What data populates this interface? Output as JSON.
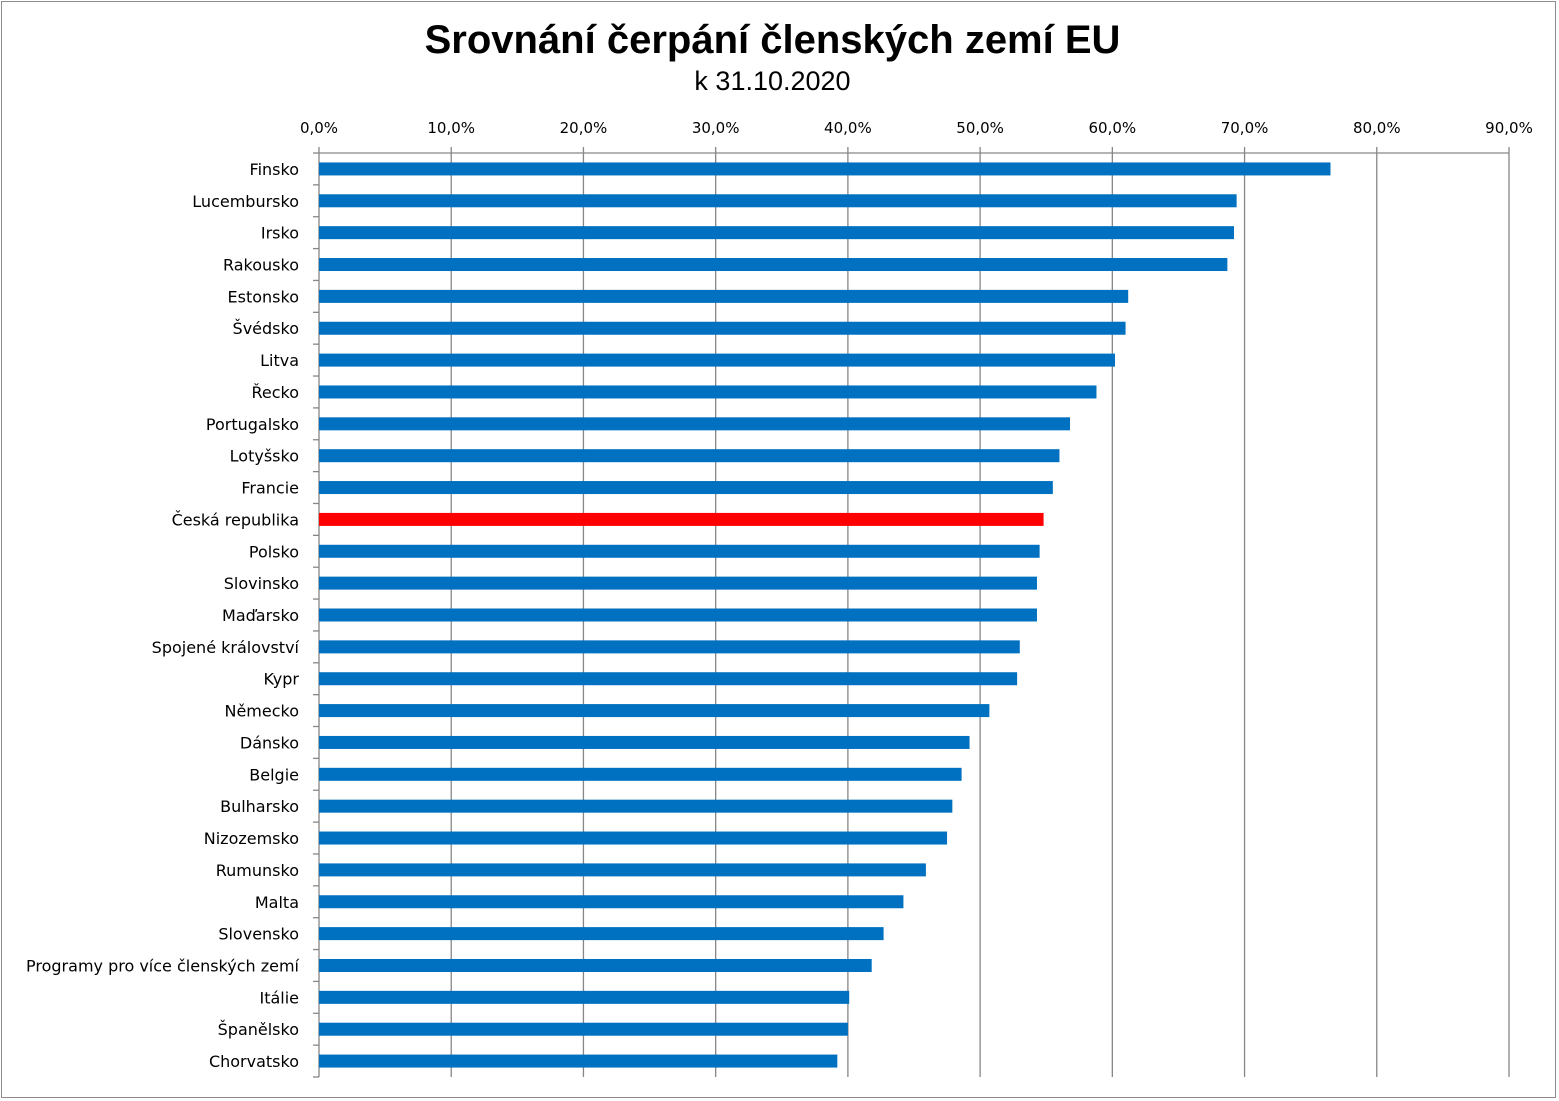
{
  "chart_data": {
    "type": "bar",
    "orientation": "horizontal",
    "title": "Srovnání čerpání členských zemí EU",
    "subtitle": "k 31.10.2020",
    "xlim": [
      0,
      90
    ],
    "x_ticks": [
      0,
      10,
      20,
      30,
      40,
      50,
      60,
      70,
      80,
      90
    ],
    "x_tick_labels": [
      "0,0%",
      "10,0%",
      "20,0%",
      "30,0%",
      "40,0%",
      "50,0%",
      "60,0%",
      "70,0%",
      "80,0%",
      "90,0%"
    ],
    "x_axis_position": "top",
    "grid": true,
    "categories": [
      "Finsko",
      "Lucembursko",
      "Irsko",
      "Rakousko",
      "Estonsko",
      "Švédsko",
      "Litva",
      "Řecko",
      "Portugalsko",
      "Lotyšsko",
      "Francie",
      "Česká republika",
      "Polsko",
      "Slovinsko",
      "Maďarsko",
      "Spojené království",
      "Kypr",
      "Německo",
      "Dánsko",
      "Belgie",
      "Bulharsko",
      "Nizozemsko",
      "Rumunsko",
      "Malta",
      "Slovensko",
      "Programy pro více členských zemí",
      "Itálie",
      "Španělsko",
      "Chorvatsko"
    ],
    "values": [
      76.5,
      69.4,
      69.2,
      68.7,
      61.2,
      61.0,
      60.2,
      58.8,
      56.8,
      56.0,
      55.5,
      54.8,
      54.5,
      54.3,
      54.3,
      53.0,
      52.8,
      50.7,
      49.2,
      48.6,
      47.9,
      47.5,
      45.9,
      44.2,
      42.7,
      41.8,
      40.1,
      40.0,
      39.2
    ],
    "highlight": "Česká republika",
    "colors": {
      "default": "#0070C0",
      "highlight": "#FF0000",
      "grid": "#868686",
      "axis": "#868686"
    }
  }
}
